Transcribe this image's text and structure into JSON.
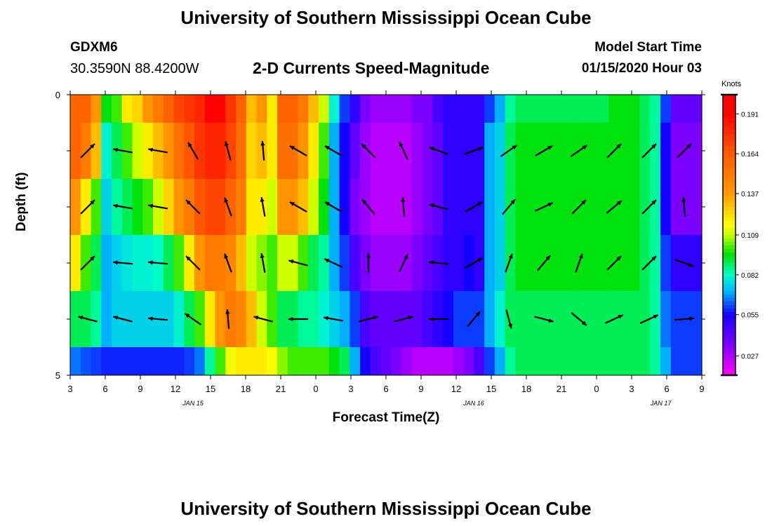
{
  "header": {
    "title": "University of Southern Mississippi Ocean Cube",
    "station": "GDXM6",
    "coords": "30.3590N 88.4200W",
    "subtitle": "2-D Currents Speed-Magnitude",
    "model_start_label": "Model Start Time",
    "model_start_value": "01/15/2020 Hour 03"
  },
  "footer": {
    "title": "University of Southern Mississippi Ocean Cube"
  },
  "chart_data": {
    "type": "heatmap",
    "title": "2-D Currents Speed-Magnitude",
    "xlabel": "Forecast Time(Z)",
    "ylabel": "Depth (ft)",
    "colorbar_label": "Knots",
    "x_tick_labels": [
      "3",
      "6",
      "9",
      "12",
      "15",
      "18",
      "21",
      "0",
      "3",
      "6",
      "9",
      "12",
      "15",
      "18",
      "21",
      "0",
      "3",
      "6",
      "9"
    ],
    "date_labels": [
      {
        "label": "JAN 15",
        "hours_since_start": 9
      },
      {
        "label": "JAN 16",
        "hours_since_start": 33
      },
      {
        "label": "JAN 17",
        "hours_since_start": 49
      }
    ],
    "y_tick_labels": [
      "0",
      "5"
    ],
    "depth_range_ft": [
      0,
      5
    ],
    "colorbar_ticks": [
      0.191,
      0.164,
      0.137,
      0.109,
      0.082,
      0.055,
      0.027
    ],
    "color_stops": [
      {
        "v": 0.014,
        "c": "#ff00ff"
      },
      {
        "v": 0.035,
        "c": "#7b00ff"
      },
      {
        "v": 0.055,
        "c": "#1400ff"
      },
      {
        "v": 0.07,
        "c": "#00b0ff"
      },
      {
        "v": 0.082,
        "c": "#00ffc8"
      },
      {
        "v": 0.096,
        "c": "#00e000"
      },
      {
        "v": 0.109,
        "c": "#c8ff00"
      },
      {
        "v": 0.116,
        "c": "#ffff00"
      },
      {
        "v": 0.137,
        "c": "#ff9a00"
      },
      {
        "v": 0.164,
        "c": "#ff5a00"
      },
      {
        "v": 0.191,
        "c": "#ff0000"
      }
    ],
    "speed_layers": [
      {
        "depth_ft": 0.25,
        "values": [
          0.16,
          0.16,
          0.14,
          0.095,
          0.1,
          0.12,
          0.125,
          0.14,
          0.15,
          0.16,
          0.17,
          0.175,
          0.18,
          0.19,
          0.19,
          0.175,
          0.16,
          0.13,
          0.14,
          0.12,
          0.16,
          0.16,
          0.15,
          0.13,
          0.11,
          0.08,
          0.06,
          0.05,
          0.035,
          0.03,
          0.03,
          0.03,
          0.03,
          0.035,
          0.035,
          0.045,
          0.05,
          0.05,
          0.05,
          0.05,
          0.06,
          0.07,
          0.085,
          0.09,
          0.09,
          0.09,
          0.09,
          0.09,
          0.09,
          0.09,
          0.09,
          0.09,
          0.095,
          0.095,
          0.095,
          0.09,
          0.085,
          0.06,
          0.04,
          0.04,
          0.04
        ]
      },
      {
        "depth_ft": 1.25,
        "values": [
          0.16,
          0.15,
          0.13,
          0.08,
          0.09,
          0.1,
          0.11,
          0.12,
          0.13,
          0.14,
          0.155,
          0.165,
          0.175,
          0.18,
          0.18,
          0.17,
          0.155,
          0.125,
          0.13,
          0.12,
          0.155,
          0.155,
          0.14,
          0.12,
          0.1,
          0.07,
          0.055,
          0.04,
          0.03,
          0.025,
          0.025,
          0.025,
          0.025,
          0.03,
          0.035,
          0.04,
          0.05,
          0.05,
          0.05,
          0.05,
          0.07,
          0.075,
          0.09,
          0.095,
          0.095,
          0.095,
          0.095,
          0.095,
          0.095,
          0.095,
          0.095,
          0.095,
          0.095,
          0.095,
          0.095,
          0.09,
          0.085,
          0.055,
          0.035,
          0.035,
          0.035
        ]
      },
      {
        "depth_ft": 2.25,
        "values": [
          0.14,
          0.12,
          0.1,
          0.075,
          0.085,
          0.09,
          0.095,
          0.1,
          0.11,
          0.125,
          0.14,
          0.15,
          0.165,
          0.17,
          0.17,
          0.16,
          0.15,
          0.12,
          0.12,
          0.11,
          0.14,
          0.14,
          0.13,
          0.11,
          0.095,
          0.07,
          0.055,
          0.035,
          0.03,
          0.025,
          0.025,
          0.025,
          0.025,
          0.03,
          0.035,
          0.04,
          0.05,
          0.05,
          0.05,
          0.05,
          0.07,
          0.075,
          0.09,
          0.095,
          0.095,
          0.095,
          0.095,
          0.095,
          0.095,
          0.095,
          0.095,
          0.095,
          0.095,
          0.095,
          0.095,
          0.09,
          0.085,
          0.055,
          0.035,
          0.035,
          0.035
        ]
      },
      {
        "depth_ft": 3.25,
        "values": [
          0.12,
          0.1,
          0.09,
          0.07,
          0.075,
          0.078,
          0.08,
          0.08,
          0.082,
          0.09,
          0.1,
          0.12,
          0.14,
          0.15,
          0.15,
          0.145,
          0.13,
          0.11,
          0.105,
          0.1,
          0.11,
          0.11,
          0.1,
          0.09,
          0.085,
          0.07,
          0.06,
          0.045,
          0.035,
          0.03,
          0.03,
          0.03,
          0.03,
          0.035,
          0.04,
          0.045,
          0.05,
          0.05,
          0.055,
          0.05,
          0.07,
          0.075,
          0.09,
          0.095,
          0.095,
          0.095,
          0.095,
          0.095,
          0.095,
          0.095,
          0.095,
          0.095,
          0.095,
          0.095,
          0.095,
          0.09,
          0.085,
          0.06,
          0.05,
          0.05,
          0.05
        ]
      },
      {
        "depth_ft": 4.25,
        "values": [
          0.09,
          0.09,
          0.085,
          0.07,
          0.075,
          0.075,
          0.075,
          0.075,
          0.075,
          0.075,
          0.08,
          0.09,
          0.1,
          0.12,
          0.14,
          0.15,
          0.145,
          0.13,
          0.11,
          0.1,
          0.09,
          0.09,
          0.085,
          0.085,
          0.08,
          0.075,
          0.07,
          0.06,
          0.045,
          0.04,
          0.04,
          0.04,
          0.04,
          0.04,
          0.045,
          0.05,
          0.055,
          0.06,
          0.06,
          0.06,
          0.07,
          0.08,
          0.09,
          0.09,
          0.09,
          0.09,
          0.09,
          0.09,
          0.09,
          0.09,
          0.09,
          0.09,
          0.09,
          0.09,
          0.09,
          0.09,
          0.085,
          0.065,
          0.06,
          0.06,
          0.06
        ]
      },
      {
        "depth_ft": 4.75,
        "values": [
          0.065,
          0.062,
          0.06,
          0.058,
          0.058,
          0.058,
          0.058,
          0.058,
          0.058,
          0.058,
          0.058,
          0.06,
          0.065,
          0.085,
          0.1,
          0.115,
          0.12,
          0.12,
          0.12,
          0.115,
          0.105,
          0.1,
          0.1,
          0.1,
          0.1,
          0.095,
          0.09,
          0.07,
          0.055,
          0.045,
          0.04,
          0.035,
          0.03,
          0.025,
          0.025,
          0.025,
          0.025,
          0.03,
          0.035,
          0.045,
          0.06,
          0.07,
          0.085,
          0.09,
          0.09,
          0.09,
          0.09,
          0.09,
          0.09,
          0.09,
          0.09,
          0.09,
          0.09,
          0.09,
          0.09,
          0.09,
          0.085,
          0.07,
          0.06,
          0.06,
          0.06
        ]
      }
    ],
    "vector_rows": [
      {
        "depth_ft": 1.0,
        "dir": [
          -45,
          -170,
          -170,
          -120,
          -105,
          -95,
          -150,
          -150,
          -135,
          -115,
          -160,
          -20,
          -35,
          -30,
          -35,
          -45,
          -45,
          -45
        ]
      },
      {
        "depth_ft": 2.0,
        "dir": [
          -45,
          -170,
          -170,
          -135,
          -110,
          -100,
          -150,
          -150,
          -130,
          -95,
          -165,
          -30,
          -50,
          -25,
          -45,
          -40,
          -45,
          -95
        ]
      },
      {
        "depth_ft": 3.0,
        "dir": [
          -45,
          -175,
          -175,
          -135,
          -110,
          -100,
          -165,
          -155,
          -90,
          -65,
          -175,
          -30,
          -70,
          -50,
          -70,
          -45,
          -45,
          20
        ]
      },
      {
        "depth_ft": 4.0,
        "dir": [
          -165,
          -165,
          -175,
          -145,
          -95,
          -165,
          -180,
          -170,
          -15,
          -15,
          -180,
          -50,
          75,
          15,
          40,
          -25,
          -25,
          -5
        ]
      }
    ]
  }
}
